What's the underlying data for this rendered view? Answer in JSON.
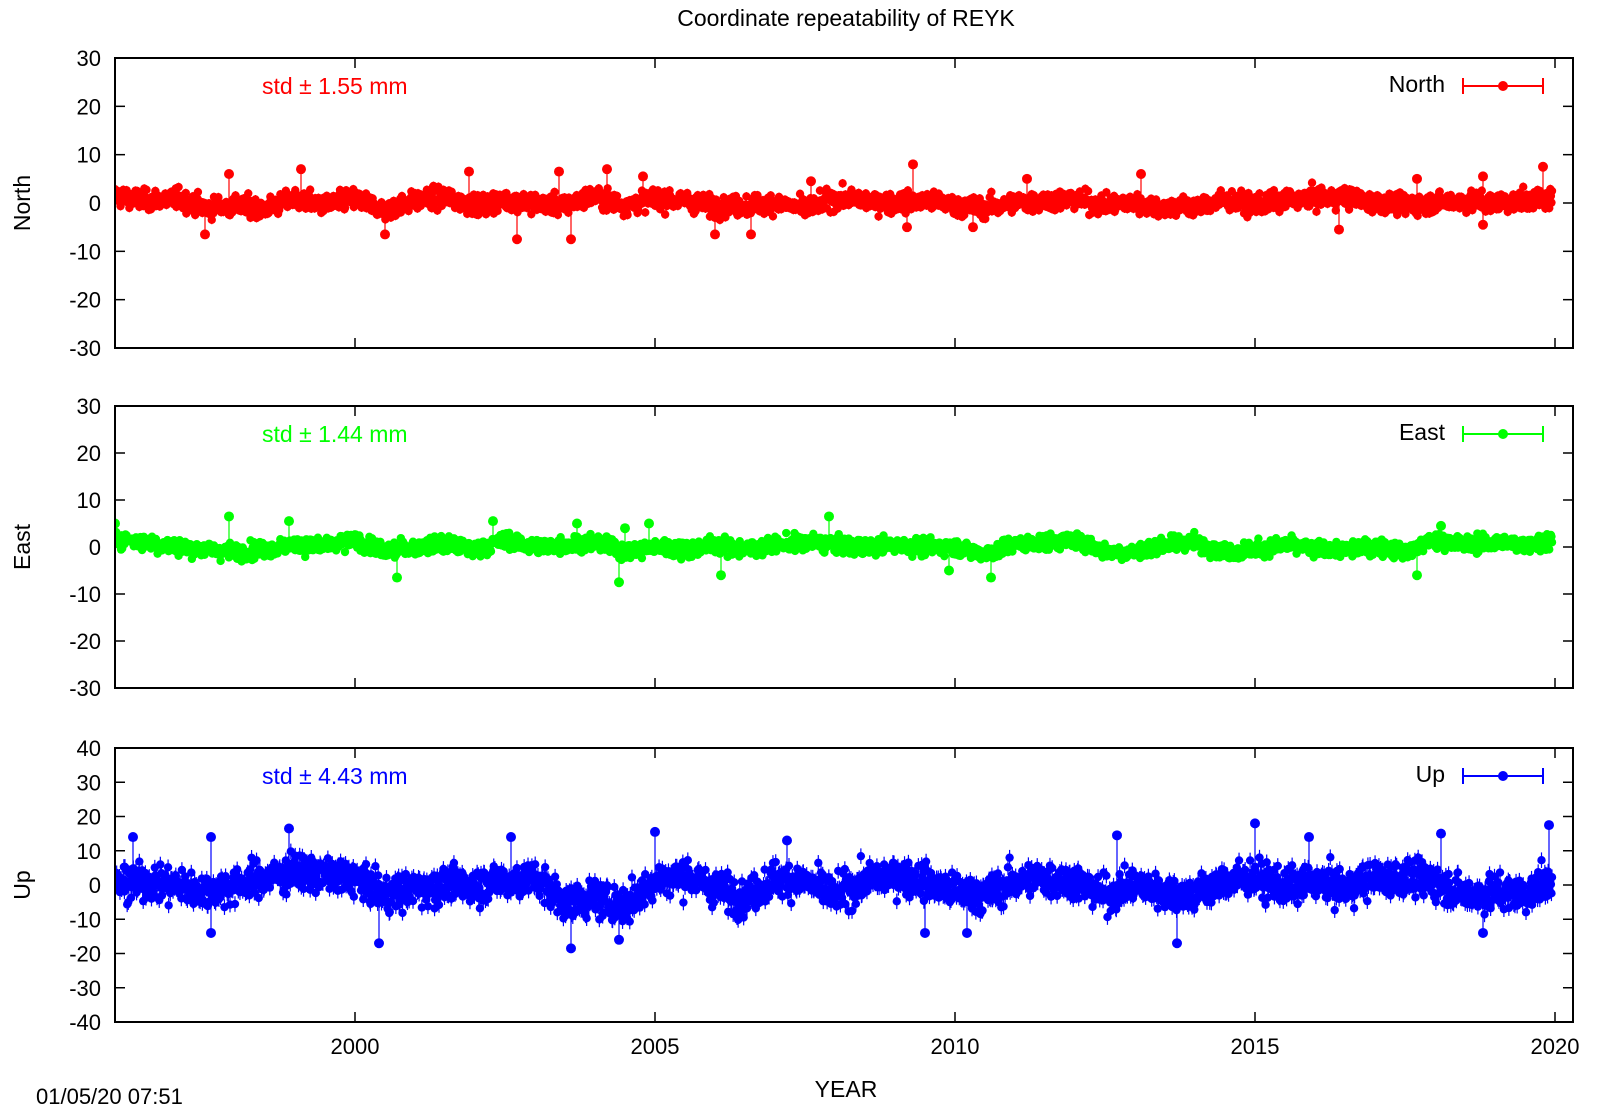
{
  "title": "Coordinate repeatability of REYK",
  "timestamp": "01/05/20 07:51",
  "chart_data": {
    "type": "scatter",
    "title": "Coordinate repeatability of REYK",
    "xlabel": "YEAR",
    "xlim": [
      1996.0,
      2020.3
    ],
    "xticks": [
      2000,
      2005,
      2010,
      2015,
      2020
    ],
    "xtick_labels": [
      "2000",
      "2005",
      "2010",
      "2015",
      "2020"
    ],
    "panels": [
      {
        "ylabel": "North",
        "legend": "North",
        "legend_position": "top-right",
        "color": "#ff0000",
        "std_label": "std ± 1.55 mm",
        "std": 1.55,
        "ylim": [
          -30,
          30
        ],
        "yticks": [
          30,
          20,
          10,
          0,
          -10,
          -20,
          -30
        ],
        "ytick_labels": [
          "30",
          "20",
          "10",
          "0",
          "-10",
          "-20",
          "-30"
        ],
        "series": {
          "x": [
            1996.0,
            1996.5,
            1997.0,
            1997.5,
            1998.0,
            1998.5,
            1999.0,
            1999.5,
            2000.0,
            2000.5,
            2001.0,
            2001.5,
            2002.0,
            2002.5,
            2003.0,
            2003.5,
            2004.0,
            2004.5,
            2005.0,
            2005.5,
            2006.0,
            2006.5,
            2007.0,
            2007.5,
            2008.0,
            2008.5,
            2009.0,
            2009.5,
            2010.0,
            2010.5,
            2011.0,
            2011.5,
            2012.0,
            2012.5,
            2013.0,
            2013.5,
            2014.0,
            2014.5,
            2015.0,
            2015.5,
            2016.0,
            2016.5,
            2017.0,
            2017.5,
            2018.0,
            2018.5,
            2019.0,
            2019.5,
            2019.95
          ],
          "y": [
            1.5,
            0.5,
            1.0,
            -1.0,
            -0.5,
            -1.2,
            0.8,
            -0.5,
            1.0,
            -1.5,
            0.5,
            1.2,
            -0.5,
            0.5,
            0.0,
            -0.5,
            1.5,
            -0.5,
            1.0,
            0.5,
            -0.8,
            -0.5,
            0.0,
            -1.2,
            1.0,
            0.5,
            0.0,
            0.5,
            -0.5,
            -1.0,
            0.0,
            0.5,
            0.8,
            -0.5,
            0.0,
            -1.0,
            -0.8,
            0.5,
            -0.5,
            0.5,
            1.0,
            1.2,
            0.0,
            -0.5,
            0.0,
            0.5,
            0.0,
            0.5,
            1.0
          ]
        },
        "outliers": [
          {
            "x": 1997.5,
            "y": -6.5
          },
          {
            "x": 1997.9,
            "y": 6.0
          },
          {
            "x": 1999.1,
            "y": 7.0
          },
          {
            "x": 2000.5,
            "y": -6.5
          },
          {
            "x": 2001.9,
            "y": 6.5
          },
          {
            "x": 2002.7,
            "y": -7.5
          },
          {
            "x": 2003.4,
            "y": 6.5
          },
          {
            "x": 2003.6,
            "y": -7.5
          },
          {
            "x": 2004.2,
            "y": 7.0
          },
          {
            "x": 2004.8,
            "y": 5.5
          },
          {
            "x": 2006.0,
            "y": -6.5
          },
          {
            "x": 2006.6,
            "y": -6.5
          },
          {
            "x": 2007.6,
            "y": 4.5
          },
          {
            "x": 2009.3,
            "y": 8.0
          },
          {
            "x": 2009.2,
            "y": -5.0
          },
          {
            "x": 2010.3,
            "y": -5.0
          },
          {
            "x": 2011.2,
            "y": 5.0
          },
          {
            "x": 2013.1,
            "y": 6.0
          },
          {
            "x": 2016.4,
            "y": -5.5
          },
          {
            "x": 2017.7,
            "y": 5.0
          },
          {
            "x": 2018.8,
            "y": 5.5
          },
          {
            "x": 2018.8,
            "y": -4.5
          },
          {
            "x": 2019.8,
            "y": 7.5
          }
        ],
        "spread": 2.6
      },
      {
        "ylabel": "East",
        "legend": "East",
        "legend_position": "top-right",
        "color": "#00ff00",
        "std_label": "std ± 1.44 mm",
        "std": 1.44,
        "ylim": [
          -30,
          30
        ],
        "yticks": [
          30,
          20,
          10,
          0,
          -10,
          -20,
          -30
        ],
        "ytick_labels": [
          "30",
          "20",
          "10",
          "0",
          "-10",
          "-20",
          "-30"
        ],
        "series": {
          "x": [
            1996.0,
            1996.5,
            1997.0,
            1997.5,
            1998.0,
            1998.5,
            1999.0,
            1999.5,
            2000.0,
            2000.5,
            2001.0,
            2001.5,
            2002.0,
            2002.5,
            2003.0,
            2003.5,
            2004.0,
            2004.5,
            2005.0,
            2005.5,
            2006.0,
            2006.5,
            2007.0,
            2007.5,
            2008.0,
            2008.5,
            2009.0,
            2009.5,
            2010.0,
            2010.5,
            2011.0,
            2011.5,
            2012.0,
            2012.5,
            2013.0,
            2013.5,
            2014.0,
            2014.5,
            2015.0,
            2015.5,
            2016.0,
            2016.5,
            2017.0,
            2017.5,
            2018.0,
            2018.5,
            2019.0,
            2019.5,
            2019.95
          ],
          "y": [
            2.0,
            1.0,
            0.0,
            -0.5,
            -1.0,
            -0.5,
            0.5,
            0.0,
            1.5,
            -1.0,
            0.0,
            0.5,
            -0.5,
            1.5,
            0.0,
            0.5,
            1.0,
            -1.0,
            0.0,
            -0.5,
            0.5,
            -0.5,
            0.5,
            1.0,
            0.5,
            0.0,
            0.5,
            0.0,
            0.0,
            -1.5,
            0.5,
            1.0,
            1.5,
            -1.0,
            -1.0,
            0.5,
            1.0,
            -1.0,
            -0.5,
            0.5,
            -0.5,
            -0.5,
            0.0,
            -0.8,
            1.5,
            0.5,
            1.0,
            0.5,
            1.5
          ]
        },
        "outliers": [
          {
            "x": 1996.0,
            "y": 5.0
          },
          {
            "x": 1997.9,
            "y": 6.5
          },
          {
            "x": 1998.9,
            "y": 5.5
          },
          {
            "x": 2000.7,
            "y": -6.5
          },
          {
            "x": 2002.3,
            "y": 5.5
          },
          {
            "x": 2003.7,
            "y": 5.0
          },
          {
            "x": 2004.5,
            "y": 4.0
          },
          {
            "x": 2004.4,
            "y": -7.5
          },
          {
            "x": 2004.9,
            "y": 5.0
          },
          {
            "x": 2006.1,
            "y": -6.0
          },
          {
            "x": 2007.9,
            "y": 6.5
          },
          {
            "x": 2009.9,
            "y": -5.0
          },
          {
            "x": 2010.6,
            "y": -6.5
          },
          {
            "x": 2017.7,
            "y": -6.0
          },
          {
            "x": 2018.1,
            "y": 4.5
          }
        ],
        "spread": 2.2
      },
      {
        "ylabel": "Up",
        "legend": "Up",
        "legend_position": "top-right",
        "color": "#0000ff",
        "std_label": "std ± 4.43 mm",
        "std": 4.43,
        "ylim": [
          -40,
          40
        ],
        "yticks": [
          40,
          30,
          20,
          10,
          0,
          -10,
          -20,
          -30,
          -40
        ],
        "ytick_labels": [
          "40",
          "30",
          "20",
          "10",
          "0",
          "-10",
          "-20",
          "-30",
          "-40"
        ],
        "series": {
          "x": [
            1996.0,
            1996.5,
            1997.0,
            1997.5,
            1998.0,
            1998.5,
            1999.0,
            1999.5,
            2000.0,
            2000.5,
            2001.0,
            2001.5,
            2002.0,
            2002.5,
            2003.0,
            2003.5,
            2004.0,
            2004.5,
            2005.0,
            2005.5,
            2006.0,
            2006.5,
            2007.0,
            2007.5,
            2008.0,
            2008.5,
            2009.0,
            2009.5,
            2010.0,
            2010.5,
            2011.0,
            2011.5,
            2012.0,
            2012.5,
            2013.0,
            2013.5,
            2014.0,
            2014.5,
            2015.0,
            2015.5,
            2016.0,
            2016.5,
            2017.0,
            2017.5,
            2018.0,
            2018.5,
            2019.0,
            2019.5,
            2019.95
          ],
          "y": [
            0.0,
            1.0,
            0.0,
            -2.0,
            0.0,
            2.0,
            4.0,
            3.0,
            2.0,
            -3.0,
            -1.0,
            0.0,
            0.0,
            1.0,
            2.0,
            -5.0,
            -4.0,
            -6.0,
            1.0,
            3.0,
            -1.0,
            -4.0,
            2.0,
            1.0,
            -3.0,
            1.0,
            3.0,
            1.0,
            -2.0,
            -3.0,
            1.0,
            2.0,
            1.0,
            -3.0,
            0.0,
            -2.0,
            -3.0,
            1.0,
            2.0,
            -1.0,
            1.0,
            -1.0,
            2.0,
            2.0,
            1.0,
            -3.0,
            -2.0,
            -3.0,
            2.0
          ]
        },
        "outliers": [
          {
            "x": 1996.3,
            "y": 14.0
          },
          {
            "x": 1997.6,
            "y": 14.0
          },
          {
            "x": 1997.6,
            "y": -14.0
          },
          {
            "x": 1998.9,
            "y": 16.5
          },
          {
            "x": 2000.4,
            "y": -17.0
          },
          {
            "x": 2002.6,
            "y": 14.0
          },
          {
            "x": 2003.6,
            "y": -18.5
          },
          {
            "x": 2004.4,
            "y": -16.0
          },
          {
            "x": 2005.0,
            "y": 15.5
          },
          {
            "x": 2007.2,
            "y": 13.0
          },
          {
            "x": 2009.5,
            "y": -14.0
          },
          {
            "x": 2010.2,
            "y": -14.0
          },
          {
            "x": 2012.7,
            "y": 14.5
          },
          {
            "x": 2013.7,
            "y": -17.0
          },
          {
            "x": 2015.0,
            "y": 18.0
          },
          {
            "x": 2015.9,
            "y": 14.0
          },
          {
            "x": 2018.1,
            "y": 15.0
          },
          {
            "x": 2018.8,
            "y": -14.0
          },
          {
            "x": 2019.9,
            "y": 17.5
          }
        ],
        "spread": 6.5
      }
    ]
  }
}
